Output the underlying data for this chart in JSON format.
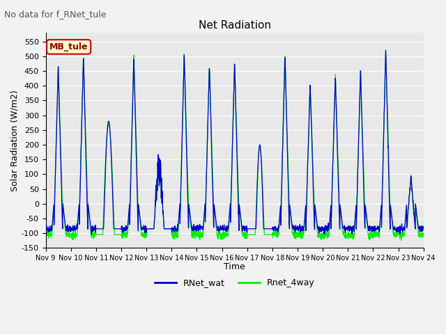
{
  "title": "Net Radiation",
  "xlabel": "Time",
  "ylabel": "Solar Radiation (W/m2)",
  "annotation": "No data for f_RNet_tule",
  "legend_label1": "RNet_wat",
  "legend_label2": "Rnet_4way",
  "color1": "#0000cc",
  "color2": "#00ee00",
  "ylim": [
    -150,
    580
  ],
  "yticks": [
    -150,
    -100,
    -50,
    0,
    50,
    100,
    150,
    200,
    250,
    300,
    350,
    400,
    450,
    500,
    550
  ],
  "plot_bg": "#e8e8e8",
  "fig_bg": "#f2f2f2",
  "title_fontsize": 11,
  "label_fontsize": 9,
  "tick_fontsize": 8,
  "annot_fontsize": 9,
  "legend_fontsize": 9,
  "mb_box_facecolor": "#ffffcc",
  "mb_box_edgecolor": "#cc0000",
  "mb_box_text_color": "#880000",
  "mb_box_text": "MB_tule"
}
